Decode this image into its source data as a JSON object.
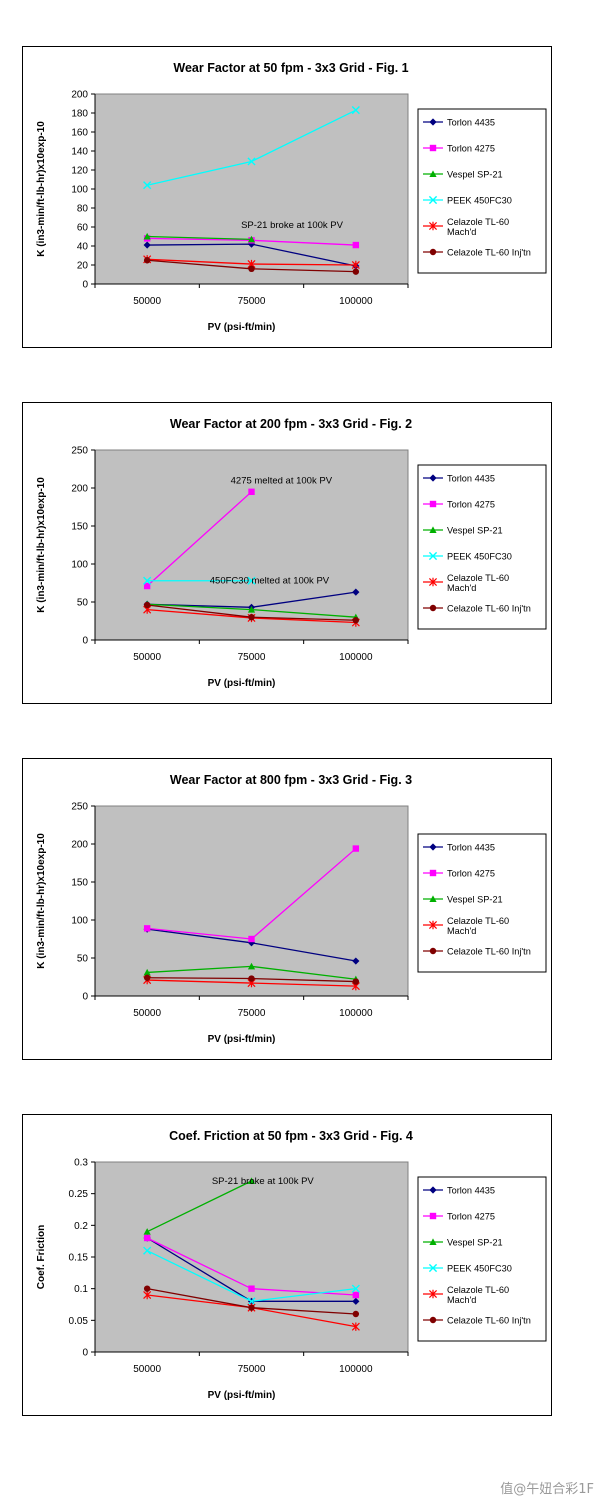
{
  "chart_data": [
    {
      "type": "line",
      "title": "Wear Factor at 50 fpm - 3x3 Grid - Fig. 1",
      "xlabel": "PV (psi-ft/min)",
      "ylabel": "K (in3-min/ft-lb-hr)x10exp-10",
      "categories": [
        "50000",
        "75000",
        "100000"
      ],
      "ylim": [
        0,
        200
      ],
      "yticks": [
        "0",
        "20",
        "40",
        "60",
        "80",
        "100",
        "120",
        "140",
        "160",
        "180",
        "200"
      ],
      "series": [
        {
          "name": "Torlon 4435",
          "color": "#000080",
          "marker": "diamond",
          "values": [
            41,
            42,
            19
          ]
        },
        {
          "name": "Torlon 4275",
          "color": "#ff00ff",
          "marker": "square",
          "values": [
            48,
            46,
            41
          ]
        },
        {
          "name": "Vespel SP-21",
          "color": "#00b000",
          "marker": "triangle",
          "values": [
            50,
            47,
            null
          ]
        },
        {
          "name": "PEEK 450FC30",
          "color": "#00ffff",
          "marker": "x",
          "values": [
            104,
            129,
            183
          ]
        },
        {
          "name": "Celazole TL-60 Mach'd",
          "color": "#ff0000",
          "marker": "star",
          "values": [
            26,
            21,
            20
          ]
        },
        {
          "name": "Celazole TL-60 Inj'tn",
          "color": "#800000",
          "marker": "circle",
          "values": [
            25,
            16,
            13
          ]
        }
      ],
      "annotations": [
        {
          "text": "SP-21 broke at 100k PV",
          "x": 1.4,
          "y": 62
        }
      ]
    },
    {
      "type": "line",
      "title": "Wear Factor at 200 fpm - 3x3 Grid - Fig. 2",
      "xlabel": "PV (psi-ft/min)",
      "ylabel": "K (in3-min/ft-lb-hr)x10exp-10",
      "categories": [
        "50000",
        "75000",
        "100000"
      ],
      "ylim": [
        0,
        250
      ],
      "yticks": [
        "0",
        "50",
        "100",
        "150",
        "200",
        "250"
      ],
      "series": [
        {
          "name": "Torlon 4435",
          "color": "#000080",
          "marker": "diamond",
          "values": [
            47,
            43,
            63
          ]
        },
        {
          "name": "Torlon 4275",
          "color": "#ff00ff",
          "marker": "square",
          "values": [
            71,
            195,
            null
          ]
        },
        {
          "name": "Vespel SP-21",
          "color": "#00b000",
          "marker": "triangle",
          "values": [
            47,
            40,
            30
          ]
        },
        {
          "name": "PEEK 450FC30",
          "color": "#00ffff",
          "marker": "x",
          "values": [
            78,
            78,
            null
          ]
        },
        {
          "name": "Celazole TL-60 Mach'd",
          "color": "#ff0000",
          "marker": "star",
          "values": [
            40,
            29,
            23
          ]
        },
        {
          "name": "Celazole TL-60 Inj'tn",
          "color": "#800000",
          "marker": "circle",
          "values": [
            46,
            30,
            26
          ]
        }
      ],
      "annotations": [
        {
          "text": "4275 melted at 100k PV",
          "x": 1.3,
          "y": 210
        },
        {
          "text": "450FC30 melted at 100k PV",
          "x": 1.1,
          "y": 78
        }
      ]
    },
    {
      "type": "line",
      "title": "Wear Factor at 800 fpm - 3x3 Grid - Fig. 3",
      "xlabel": "PV (psi-ft/min)",
      "ylabel": "K (in3-min/ft-lb-hr)x10exp-10",
      "categories": [
        "50000",
        "75000",
        "100000"
      ],
      "ylim": [
        0,
        250
      ],
      "yticks": [
        "0",
        "50",
        "100",
        "150",
        "200",
        "250"
      ],
      "series": [
        {
          "name": "Torlon 4435",
          "color": "#000080",
          "marker": "diamond",
          "values": [
            88,
            70,
            46
          ]
        },
        {
          "name": "Torlon 4275",
          "color": "#ff00ff",
          "marker": "square",
          "values": [
            89,
            75,
            194
          ]
        },
        {
          "name": "Vespel SP-21",
          "color": "#00b000",
          "marker": "triangle",
          "values": [
            31,
            39,
            22
          ]
        },
        {
          "name": "Celazole TL-60 Mach'd",
          "color": "#ff0000",
          "marker": "star",
          "values": [
            21,
            17,
            13
          ]
        },
        {
          "name": "Celazole TL-60 Inj'tn",
          "color": "#800000",
          "marker": "circle",
          "values": [
            24,
            23,
            19
          ]
        }
      ],
      "annotations": []
    },
    {
      "type": "line",
      "title": "Coef. Friction at 50 fpm - 3x3 Grid - Fig. 4",
      "xlabel": "PV (psi-ft/min)",
      "ylabel": "Coef. Friction",
      "categories": [
        "50000",
        "75000",
        "100000"
      ],
      "ylim": [
        0,
        0.3
      ],
      "yticks": [
        "0",
        "0.05",
        "0.1",
        "0.15",
        "0.2",
        "0.25",
        "0.3"
      ],
      "series": [
        {
          "name": "Torlon 4435",
          "color": "#000080",
          "marker": "diamond",
          "values": [
            0.18,
            0.08,
            0.08
          ]
        },
        {
          "name": "Torlon 4275",
          "color": "#ff00ff",
          "marker": "square",
          "values": [
            0.18,
            0.1,
            0.09
          ]
        },
        {
          "name": "Vespel SP-21",
          "color": "#00b000",
          "marker": "triangle",
          "values": [
            0.19,
            0.27,
            null
          ]
        },
        {
          "name": "PEEK 450FC30",
          "color": "#00ffff",
          "marker": "x",
          "values": [
            0.16,
            0.08,
            0.1
          ]
        },
        {
          "name": "Celazole TL-60 Mach'd",
          "color": "#ff0000",
          "marker": "star",
          "values": [
            0.09,
            0.07,
            0.04
          ]
        },
        {
          "name": "Celazole TL-60 Inj'tn",
          "color": "#800000",
          "marker": "circle",
          "values": [
            0.1,
            0.07,
            0.06
          ]
        }
      ],
      "annotations": [
        {
          "text": "SP-21 broke at 100k PV",
          "x": 1.12,
          "y": 0.27
        }
      ]
    }
  ],
  "watermark": "值@午妞合彩1F",
  "colors": {
    "plot_bg": "#c0c0c0",
    "frame": "#000000",
    "page_bg": "#ffffff"
  }
}
